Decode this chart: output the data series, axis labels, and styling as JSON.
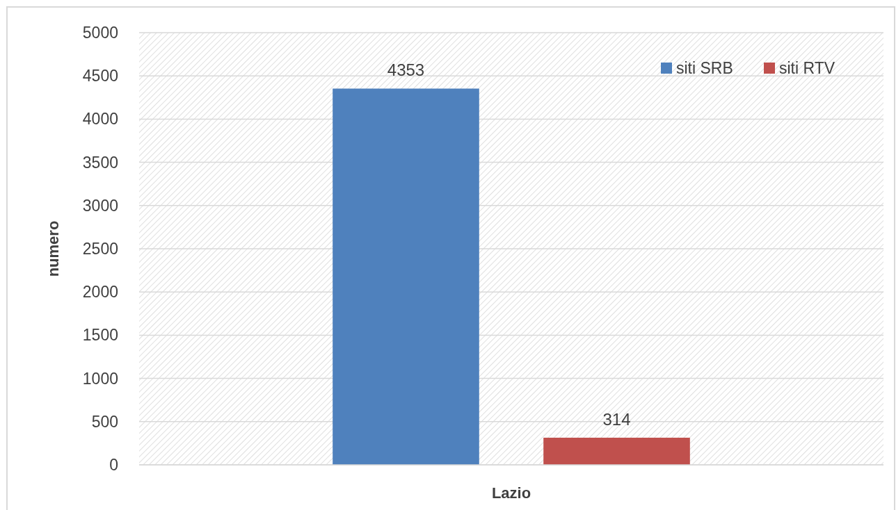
{
  "chart_data": {
    "type": "bar",
    "categories": [
      "Lazio"
    ],
    "ylabel": "numero",
    "series": [
      {
        "name": "siti SRB",
        "color": "#4f81bd",
        "values": [
          4353
        ]
      },
      {
        "name": "siti RTV",
        "color": "#c0504d",
        "values": [
          314
        ]
      }
    ],
    "ylim": [
      0,
      5000
    ],
    "yticks": [
      0,
      500,
      1000,
      1500,
      2000,
      2500,
      3000,
      3500,
      4000,
      4500,
      5000
    ],
    "grid": "y",
    "legend": "top right",
    "data_labels": true
  }
}
